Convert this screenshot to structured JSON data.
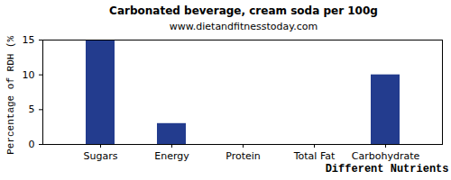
{
  "chart_data": {
    "type": "bar",
    "title": "Carbonated beverage, cream soda per 100g",
    "subtitle": "www.dietandfitnesstoday.com",
    "x_label": "Different Nutrients",
    "y_label": "Percentage of RDH (%)",
    "categories": [
      "Sugars",
      "Energy",
      "Protein",
      "Total Fat",
      "Carbohydrate"
    ],
    "values": [
      15,
      3,
      0,
      0,
      10
    ],
    "color": "#233c8e",
    "ylim": [
      0,
      15
    ],
    "yticks": [
      0,
      5,
      10,
      15
    ],
    "grid": false
  }
}
